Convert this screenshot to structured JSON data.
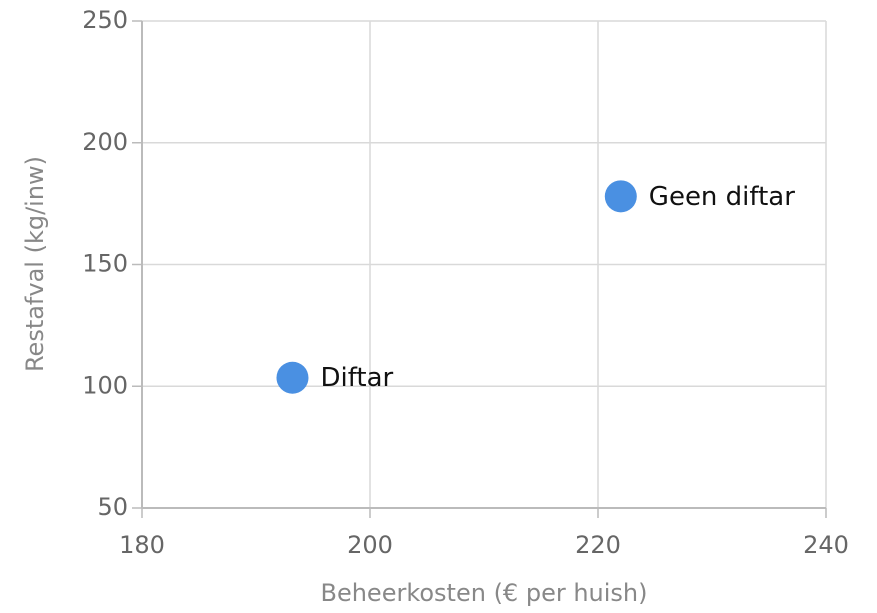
{
  "chart_data": {
    "type": "scatter",
    "x_label": "Beheerkosten (€ per huish)",
    "y_label": "Restafval (kg/inw)",
    "x": [
      193.2,
      222
    ],
    "values": [
      103.5,
      178
    ],
    "labels": [
      "Diftar",
      "Geen diftar"
    ],
    "color": "#4a90e2",
    "xlim": [
      180,
      240
    ],
    "xticks": [
      180,
      200,
      220,
      240
    ],
    "ylim": [
      50,
      250
    ],
    "yticks": [
      50,
      100,
      150,
      200,
      250
    ],
    "grid": true
  }
}
